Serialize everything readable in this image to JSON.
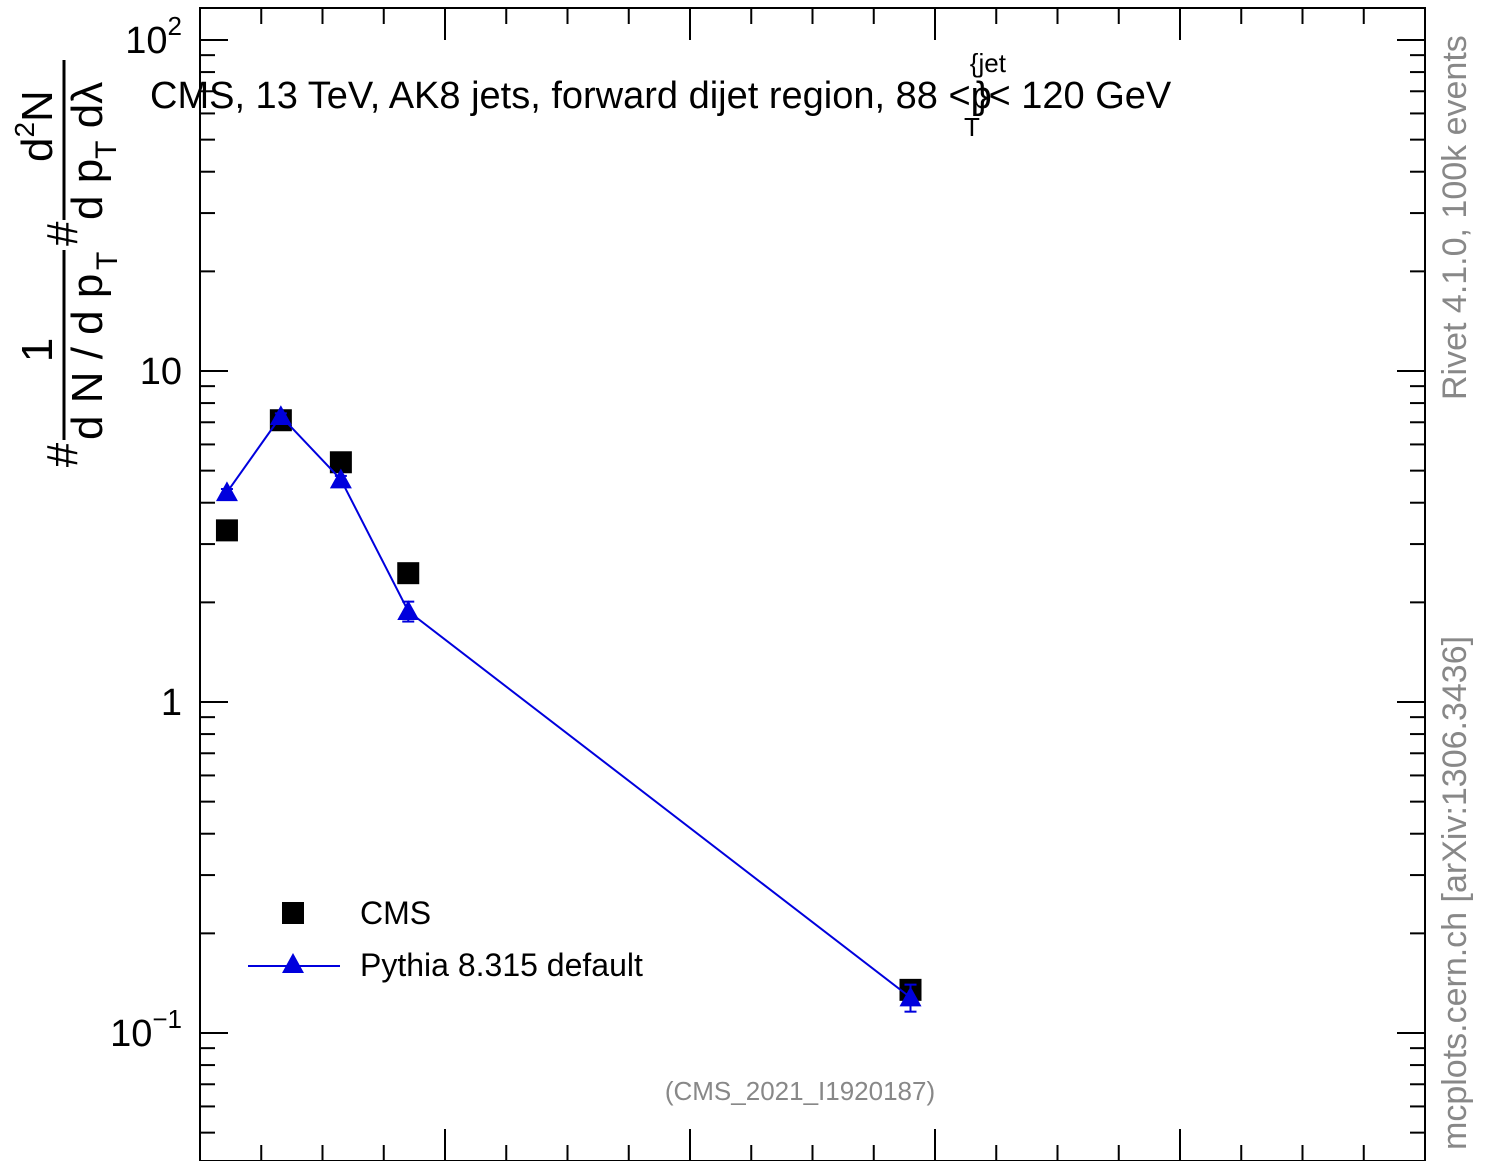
{
  "chart_data": {
    "type": "scatter",
    "title": "CMS, 13 TeV, AK8 jets, forward dijet region, 88 <",
    "title_sym": "p",
    "title_sup": "{jet",
    "title_sub": "T",
    "title_end": "}< 120 GeV",
    "ylabel": {
      "prefix": "#",
      "numerator": "1",
      "denominator": "d N / d p",
      "denominator_sub": "T",
      "mid": "#",
      "frac2_numerator": "d",
      "frac2_numerator_sup": "2",
      "frac2_numerator_end": "N",
      "frac2_denominator": "d p",
      "frac2_denominator_sub": "T",
      "frac2_denominator_end": " d",
      "lambda": "λ"
    },
    "y_scale": "log",
    "ylim": [
      0.05,
      120
    ],
    "xlim": [
      0,
      1
    ],
    "y_tick_labels": [
      {
        "value": 100,
        "base": "10",
        "exp": "2"
      },
      {
        "value": 10,
        "base": "10",
        "exp": ""
      },
      {
        "value": 1,
        "base": "1",
        "exp": ""
      },
      {
        "value": 0.1,
        "base": "10",
        "exp": "−1"
      }
    ],
    "series": [
      {
        "name": "CMS",
        "color": "#000000",
        "marker": "square",
        "x": [
          0.022,
          0.066,
          0.115,
          0.17,
          0.58
        ],
        "y": [
          3.3,
          7.1,
          5.3,
          2.45,
          0.135
        ]
      },
      {
        "name": "Pythia 8.315 default",
        "color": "#0000dd",
        "marker": "triangle",
        "line": true,
        "x": [
          0.022,
          0.066,
          0.115,
          0.17,
          0.58
        ],
        "y": [
          4.3,
          7.3,
          4.7,
          1.88,
          0.128
        ],
        "err": [
          0.1,
          0.15,
          0.12,
          0.13,
          0.012
        ]
      }
    ],
    "legend_position": "bottom-left",
    "right_label_top": "Rivet 4.1.0,  100k events",
    "right_label_bottom": "mcplots.cern.ch [arXiv:1306.3436]",
    "analysis_id": "(CMS_2021_I1920187)"
  }
}
